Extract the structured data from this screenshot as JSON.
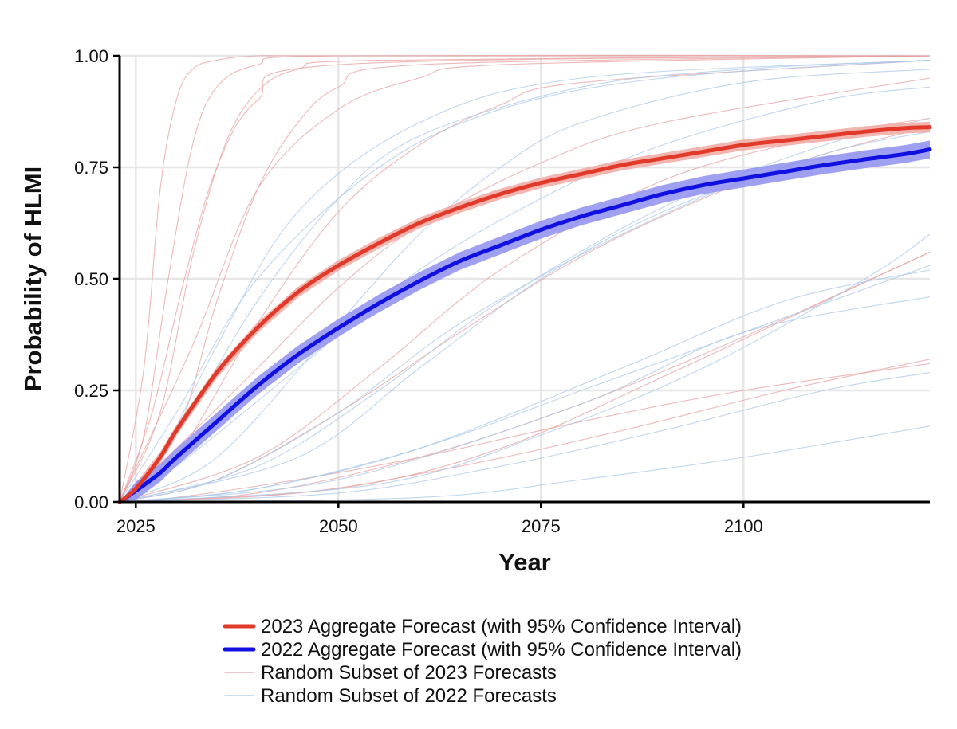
{
  "colors": {
    "agg2023": "#e23a2a",
    "agg2022": "#1010e0",
    "ci2023": "#f0a8a2",
    "ci2022": "#8f8ff0",
    "sub2023": "#e8a0a0",
    "sub2022": "#a8c8ea",
    "grid": "#e6e6e6"
  },
  "chart_data": {
    "type": "line",
    "xlabel": "Year",
    "ylabel": "Probability of HLMI",
    "xlim": [
      2023,
      2123
    ],
    "ylim": [
      0,
      1
    ],
    "xticks": [
      2025,
      2050,
      2075,
      2100
    ],
    "xtick_labels": [
      "2025",
      "2050",
      "2075",
      "2100"
    ],
    "yticks": [
      0,
      0.25,
      0.5,
      0.75,
      1
    ],
    "ytick_labels": [
      "0.00",
      "0.25",
      "0.50",
      "0.75",
      "1.00"
    ],
    "grid": true,
    "legend_position": "bottom",
    "series": [
      {
        "name": "2023 Aggregate Forecast (with 95% Confidence Interval)",
        "x": [
          2023,
          2025,
          2028,
          2030,
          2035,
          2040,
          2045,
          2050,
          2055,
          2060,
          2065,
          2070,
          2075,
          2080,
          2085,
          2090,
          2095,
          2100,
          2105,
          2110,
          2115,
          2120,
          2123
        ],
        "y": [
          0.0,
          0.03,
          0.1,
          0.16,
          0.29,
          0.39,
          0.47,
          0.53,
          0.58,
          0.625,
          0.66,
          0.69,
          0.715,
          0.735,
          0.755,
          0.77,
          0.785,
          0.8,
          0.81,
          0.82,
          0.83,
          0.838,
          0.84
        ],
        "ci_half_width": 0.012
      },
      {
        "name": "2022 Aggregate Forecast (with 95% Confidence Interval)",
        "x": [
          2023,
          2025,
          2028,
          2030,
          2035,
          2040,
          2045,
          2050,
          2055,
          2060,
          2065,
          2070,
          2075,
          2080,
          2085,
          2090,
          2095,
          2100,
          2105,
          2110,
          2115,
          2120,
          2123
        ],
        "y": [
          0.0,
          0.025,
          0.065,
          0.1,
          0.18,
          0.26,
          0.33,
          0.39,
          0.445,
          0.495,
          0.54,
          0.575,
          0.61,
          0.64,
          0.665,
          0.69,
          0.71,
          0.725,
          0.74,
          0.755,
          0.768,
          0.78,
          0.79
        ],
        "ci_half_width": 0.02
      }
    ],
    "subset_series": [
      {
        "name": "Random Subset of 2023 Forecasts",
        "curves": [
          {
            "x": [
              2023,
              2026,
              2028,
              2030,
              2032,
              2035,
              2040,
              2050,
              2123
            ],
            "y": [
              0,
              0.3,
              0.7,
              0.9,
              0.97,
              0.99,
              1.0,
              1.0,
              1.0
            ]
          },
          {
            "x": [
              2023,
              2026,
              2029,
              2032,
              2035,
              2040,
              2050,
              2123
            ],
            "y": [
              0,
              0.15,
              0.5,
              0.8,
              0.93,
              0.98,
              1.0,
              1.0
            ]
          },
          {
            "x": [
              2023,
              2028,
              2032,
              2036,
              2040,
              2045,
              2055,
              2123
            ],
            "y": [
              0,
              0.2,
              0.55,
              0.8,
              0.92,
              0.97,
              0.99,
              1.0
            ]
          },
          {
            "x": [
              2023,
              2030,
              2035,
              2040,
              2045,
              2050,
              2060,
              2123
            ],
            "y": [
              0,
              0.15,
              0.45,
              0.7,
              0.85,
              0.93,
              0.98,
              1.0
            ]
          },
          {
            "x": [
              2023,
              2030,
              2040,
              2050,
              2060,
              2070,
              2080,
              2123
            ],
            "y": [
              0,
              0.1,
              0.4,
              0.65,
              0.8,
              0.89,
              0.94,
              0.99
            ]
          },
          {
            "x": [
              2023,
              2030,
              2040,
              2050,
              2060,
              2075,
              2090,
              2123
            ],
            "y": [
              0,
              0.12,
              0.3,
              0.48,
              0.62,
              0.76,
              0.85,
              0.95
            ]
          },
          {
            "x": [
              2023,
              2035,
              2050,
              2065,
              2080,
              2095,
              2110,
              2123
            ],
            "y": [
              0,
              0.05,
              0.2,
              0.38,
              0.55,
              0.68,
              0.78,
              0.84
            ]
          },
          {
            "x": [
              2023,
              2040,
              2060,
              2080,
              2100,
              2123
            ],
            "y": [
              0,
              0.02,
              0.1,
              0.22,
              0.37,
              0.56
            ]
          },
          {
            "x": [
              2023,
              2045,
              2065,
              2085,
              2105,
              2123
            ],
            "y": [
              0,
              0.02,
              0.08,
              0.16,
              0.25,
              0.32
            ]
          },
          {
            "x": [
              2023,
              2030,
              2045,
              2060,
              2080,
              2100,
              2123
            ],
            "y": [
              0,
              0.01,
              0.05,
              0.1,
              0.18,
              0.25,
              0.31
            ]
          },
          {
            "x": [
              2023,
              2032,
              2040,
              2050,
              2060,
              2070,
              2123
            ],
            "y": [
              0,
              0.35,
              0.7,
              0.88,
              0.95,
              0.98,
              1.0
            ]
          },
          {
            "x": [
              2023,
              2040,
              2055,
              2070,
              2090,
              2110,
              2123
            ],
            "y": [
              0,
              0.1,
              0.3,
              0.52,
              0.72,
              0.82,
              0.86
            ]
          },
          {
            "x": [
              2023,
              2050,
              2070,
              2090,
              2110,
              2123
            ],
            "y": [
              0,
              0.03,
              0.12,
              0.28,
              0.45,
              0.56
            ]
          },
          {
            "x": [
              2023,
              2027,
              2031,
              2035,
              2040,
              2050,
              2123
            ],
            "y": [
              0,
              0.2,
              0.5,
              0.75,
              0.9,
              0.98,
              1.0
            ]
          }
        ]
      },
      {
        "name": "Random Subset of 2022 Forecasts",
        "curves": [
          {
            "x": [
              2023,
              2030,
              2040,
              2050,
              2060,
              2080,
              2100,
              2123
            ],
            "y": [
              0,
              0.15,
              0.45,
              0.68,
              0.82,
              0.93,
              0.97,
              0.99
            ]
          },
          {
            "x": [
              2023,
              2030,
              2045,
              2060,
              2075,
              2090,
              2110,
              2123
            ],
            "y": [
              0,
              0.08,
              0.3,
              0.52,
              0.68,
              0.8,
              0.9,
              0.93
            ]
          },
          {
            "x": [
              2023,
              2040,
              2055,
              2070,
              2090,
              2110,
              2123
            ],
            "y": [
              0,
              0.08,
              0.25,
              0.45,
              0.66,
              0.8,
              0.86
            ]
          },
          {
            "x": [
              2023,
              2040,
              2060,
              2080,
              2100,
              2123
            ],
            "y": [
              0,
              0.03,
              0.12,
              0.25,
              0.38,
              0.53
            ]
          },
          {
            "x": [
              2023,
              2050,
              2070,
              2090,
              2110,
              2123
            ],
            "y": [
              0,
              0.02,
              0.08,
              0.16,
              0.25,
              0.29
            ]
          },
          {
            "x": [
              2023,
              2060,
              2080,
              2100,
              2123
            ],
            "y": [
              0,
              0.01,
              0.05,
              0.1,
              0.17
            ]
          },
          {
            "x": [
              2023,
              2035,
              2050,
              2060,
              2070,
              2080,
              2100,
              2123
            ],
            "y": [
              0,
              0.1,
              0.4,
              0.6,
              0.75,
              0.85,
              0.94,
              0.97
            ]
          },
          {
            "x": [
              2023,
              2045,
              2060,
              2075,
              2090,
              2110,
              2123
            ],
            "y": [
              0,
              0.1,
              0.3,
              0.5,
              0.65,
              0.78,
              0.83
            ]
          },
          {
            "x": [
              2023,
              2040,
              2060,
              2085,
              2105,
              2123
            ],
            "y": [
              0,
              0.03,
              0.12,
              0.3,
              0.45,
              0.52
            ]
          },
          {
            "x": [
              2023,
              2050,
              2080,
              2100,
              2123
            ],
            "y": [
              0,
              0.05,
              0.22,
              0.38,
              0.46
            ]
          },
          {
            "x": [
              2023,
              2028,
              2035,
              2045,
              2060,
              2080,
              2123
            ],
            "y": [
              0,
              0.1,
              0.35,
              0.65,
              0.85,
              0.95,
              0.99
            ]
          },
          {
            "x": [
              2023,
              2035,
              2050,
              2065,
              2085,
              2105,
              2123
            ],
            "y": [
              0,
              0.05,
              0.2,
              0.4,
              0.6,
              0.75,
              0.8
            ]
          },
          {
            "x": [
              2023,
              2055,
              2075,
              2095,
              2115,
              2123
            ],
            "y": [
              0,
              0.04,
              0.15,
              0.3,
              0.5,
              0.6
            ]
          },
          {
            "x": [
              2023,
              2030,
              2040,
              2055,
              2070,
              2090,
              2123
            ],
            "y": [
              0,
              0.2,
              0.5,
              0.75,
              0.88,
              0.95,
              0.99
            ]
          }
        ]
      }
    ]
  }
}
